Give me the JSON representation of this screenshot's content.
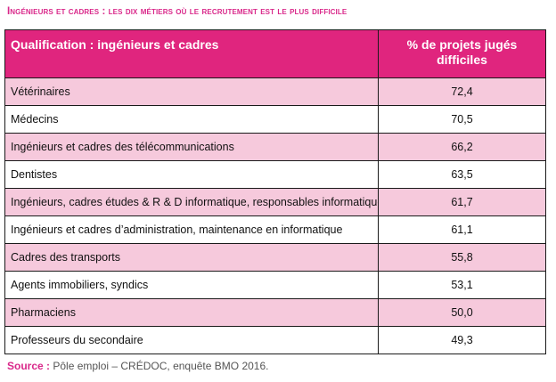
{
  "title": "Ingénieurs et cadres : les dix métiers où le recrutement est le plus difficile",
  "table": {
    "headers": [
      "Qualification : ingénieurs et cadres",
      "% de projets jugés difficiles"
    ],
    "rows": [
      {
        "label": "Vétérinaires",
        "value": "72,4"
      },
      {
        "label": "Médecins",
        "value": "70,5"
      },
      {
        "label": "Ingénieurs et cadres des télécommunications",
        "value": "66,2"
      },
      {
        "label": "Dentistes",
        "value": "63,5"
      },
      {
        "label": "Ingénieurs, cadres études & R & D informatique, responsables informatiques",
        "value": "61,7"
      },
      {
        "label": "Ingénieurs et cadres d’administration, maintenance en informatique",
        "value": "61,1"
      },
      {
        "label": "Cadres des transports",
        "value": "55,8"
      },
      {
        "label": "Agents immobiliers, syndics",
        "value": "53,1"
      },
      {
        "label": "Pharmaciens",
        "value": "50,0"
      },
      {
        "label": "Professeurs du secondaire",
        "value": "49,3"
      }
    ]
  },
  "source": {
    "label": "Source :",
    "text": " Pôle emploi – CRÉDOC, enquête BMO 2016."
  },
  "colors": {
    "accent": "#e0257e",
    "row_pink": "#f6c9dc",
    "row_white": "#ffffff"
  }
}
